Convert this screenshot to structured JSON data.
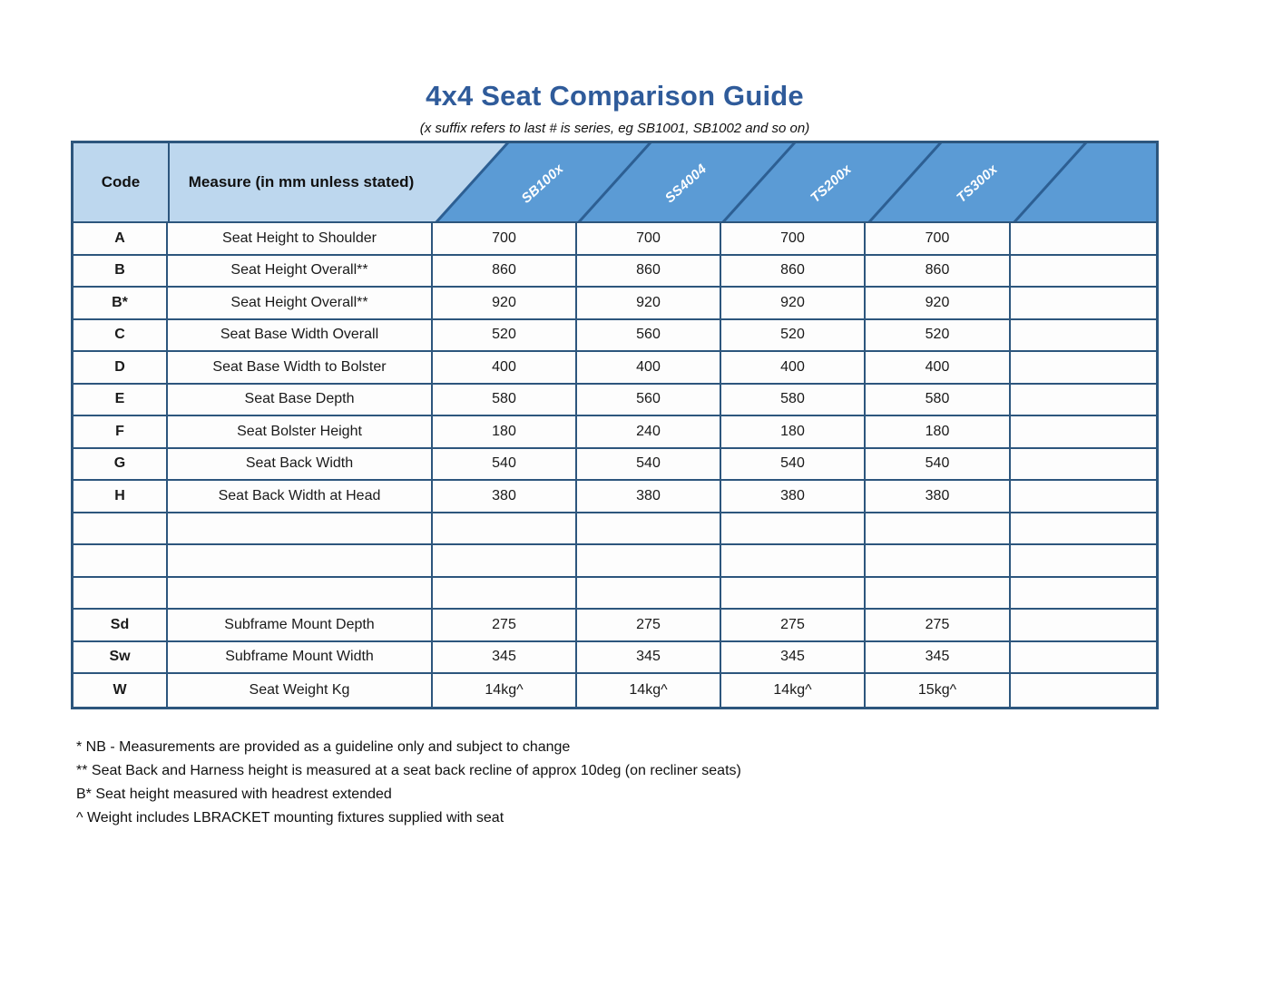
{
  "title": "4x4 Seat Comparison Guide",
  "subtitle": "(x suffix refers to last # is series, eg SB1001, SB1002 and so on)",
  "table": {
    "code_header": "Code",
    "measure_header": "Measure (in mm unless stated)",
    "products": [
      "SB100x",
      "SS4004",
      "TS200x",
      "TS300x"
    ],
    "rows": [
      {
        "code": "A",
        "measure": "Seat Height to Shoulder",
        "values": [
          "700",
          "700",
          "700",
          "700",
          ""
        ]
      },
      {
        "code": "B",
        "measure": "Seat Height Overall**",
        "values": [
          "860",
          "860",
          "860",
          "860",
          ""
        ]
      },
      {
        "code": "B*",
        "measure": "Seat Height Overall**",
        "values": [
          "920",
          "920",
          "920",
          "920",
          ""
        ]
      },
      {
        "code": "C",
        "measure": "Seat Base Width Overall",
        "values": [
          "520",
          "560",
          "520",
          "520",
          ""
        ]
      },
      {
        "code": "D",
        "measure": "Seat Base Width to Bolster",
        "values": [
          "400",
          "400",
          "400",
          "400",
          ""
        ]
      },
      {
        "code": "E",
        "measure": "Seat Base Depth",
        "values": [
          "580",
          "560",
          "580",
          "580",
          ""
        ]
      },
      {
        "code": "F",
        "measure": "Seat Bolster Height",
        "values": [
          "180",
          "240",
          "180",
          "180",
          ""
        ]
      },
      {
        "code": "G",
        "measure": "Seat Back Width",
        "values": [
          "540",
          "540",
          "540",
          "540",
          ""
        ]
      },
      {
        "code": "H",
        "measure": "Seat Back Width at Head",
        "values": [
          "380",
          "380",
          "380",
          "380",
          ""
        ]
      },
      {
        "code": "",
        "measure": "",
        "values": [
          "",
          "",
          "",
          "",
          ""
        ]
      },
      {
        "code": "",
        "measure": "",
        "values": [
          "",
          "",
          "",
          "",
          ""
        ]
      },
      {
        "code": "",
        "measure": "",
        "values": [
          "",
          "",
          "",
          "",
          ""
        ]
      },
      {
        "code": "Sd",
        "measure": "Subframe Mount Depth",
        "values": [
          "275",
          "275",
          "275",
          "275",
          ""
        ]
      },
      {
        "code": "Sw",
        "measure": "Subframe Mount Width",
        "values": [
          "345",
          "345",
          "345",
          "345",
          ""
        ]
      },
      {
        "code": "W",
        "measure": "Seat Weight Kg",
        "values": [
          "14kg^",
          "14kg^",
          "14kg^",
          "15kg^",
          ""
        ]
      }
    ]
  },
  "footnotes": [
    "* NB - Measurements are provided as a guideline only and subject to change",
    "** Seat Back and Harness height is measured at a seat back recline of approx 10deg (on recliner seats)",
    "B* Seat height measured with headrest extended",
    "^ Weight includes LBRACKET mounting fixtures supplied with seat"
  ],
  "colors": {
    "title_blue": "#2f5b9a",
    "header_light_blue": "#bdd7ee",
    "header_dark_blue": "#5b9bd5",
    "table_border": "#2d567d",
    "product_label_text": "#ffffff"
  }
}
